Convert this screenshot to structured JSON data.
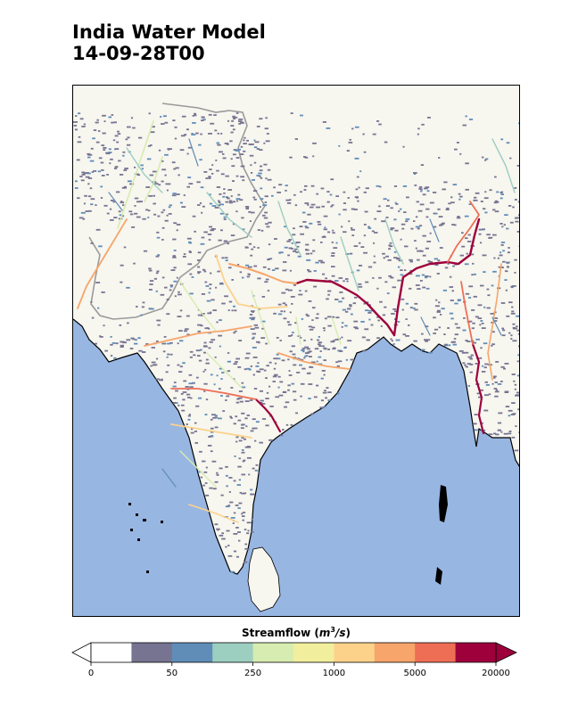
{
  "title": {
    "line1": "India Water Model",
    "line2": "14-09-28T00"
  },
  "map": {
    "region": "South Asia",
    "ocean_color": "#98b6e2",
    "land_color": "#f7f6ef",
    "border_color": "#9a9a9a",
    "coast_color": "#000000"
  },
  "colorbar": {
    "title_prefix": "Streamflow (",
    "title_unit_base": "m",
    "title_unit_exp": "3",
    "title_unit_rest": "/s",
    "title_suffix": ")",
    "colors": [
      "#ffffff",
      "#767491",
      "#5f8db8",
      "#9dcfc1",
      "#d7ecb0",
      "#f1ee9e",
      "#fcd28b",
      "#f7a56a",
      "#ee6e55",
      "#9e003c"
    ],
    "ticks": [
      {
        "label": "0",
        "index": 0
      },
      {
        "label": "50",
        "index": 2
      },
      {
        "label": "250",
        "index": 4
      },
      {
        "label": "1000",
        "index": 6
      },
      {
        "label": "5000",
        "index": 8
      },
      {
        "label": "20000",
        "index": 10
      }
    ],
    "extend": "both"
  }
}
